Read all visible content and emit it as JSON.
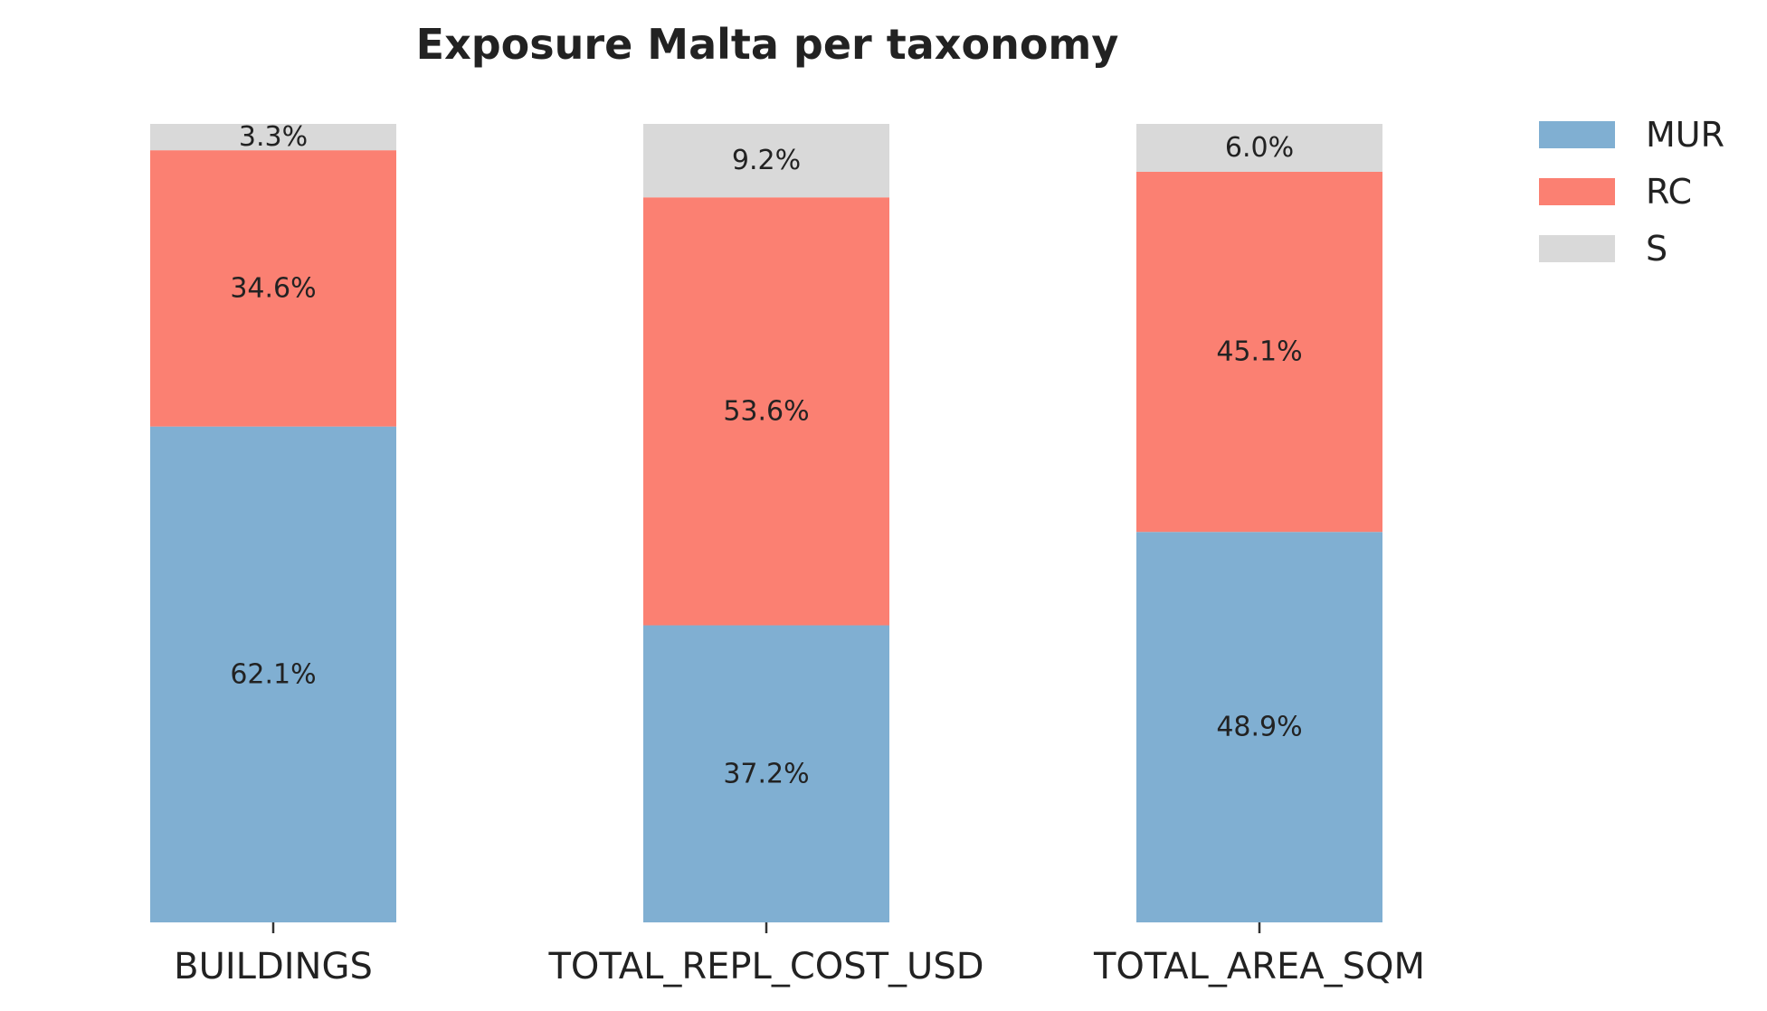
{
  "chart_data": {
    "type": "bar",
    "stacked": true,
    "normalized_percent": true,
    "title": "Exposure Malta per taxonomy",
    "xlabel": "",
    "ylabel": "",
    "ylim": [
      0,
      100
    ],
    "grid": false,
    "legend_position": "top-right",
    "categories": [
      "BUILDINGS",
      "TOTAL_REPL_COST_USD",
      "TOTAL_AREA_SQM"
    ],
    "series": [
      {
        "name": "MUR",
        "color": "#80afd2",
        "values": [
          62.1,
          37.2,
          48.9
        ],
        "labels": [
          "62.1%",
          "37.2%",
          "48.9%"
        ]
      },
      {
        "name": "RC",
        "color": "#fb8072",
        "values": [
          34.6,
          53.6,
          45.1
        ],
        "labels": [
          "34.6%",
          "53.6%",
          "45.1%"
        ]
      },
      {
        "name": "S",
        "color": "#d9d9d9",
        "values": [
          3.3,
          9.2,
          6.0
        ],
        "labels": [
          "3.3%",
          "9.2%",
          "6.0%"
        ]
      }
    ]
  }
}
